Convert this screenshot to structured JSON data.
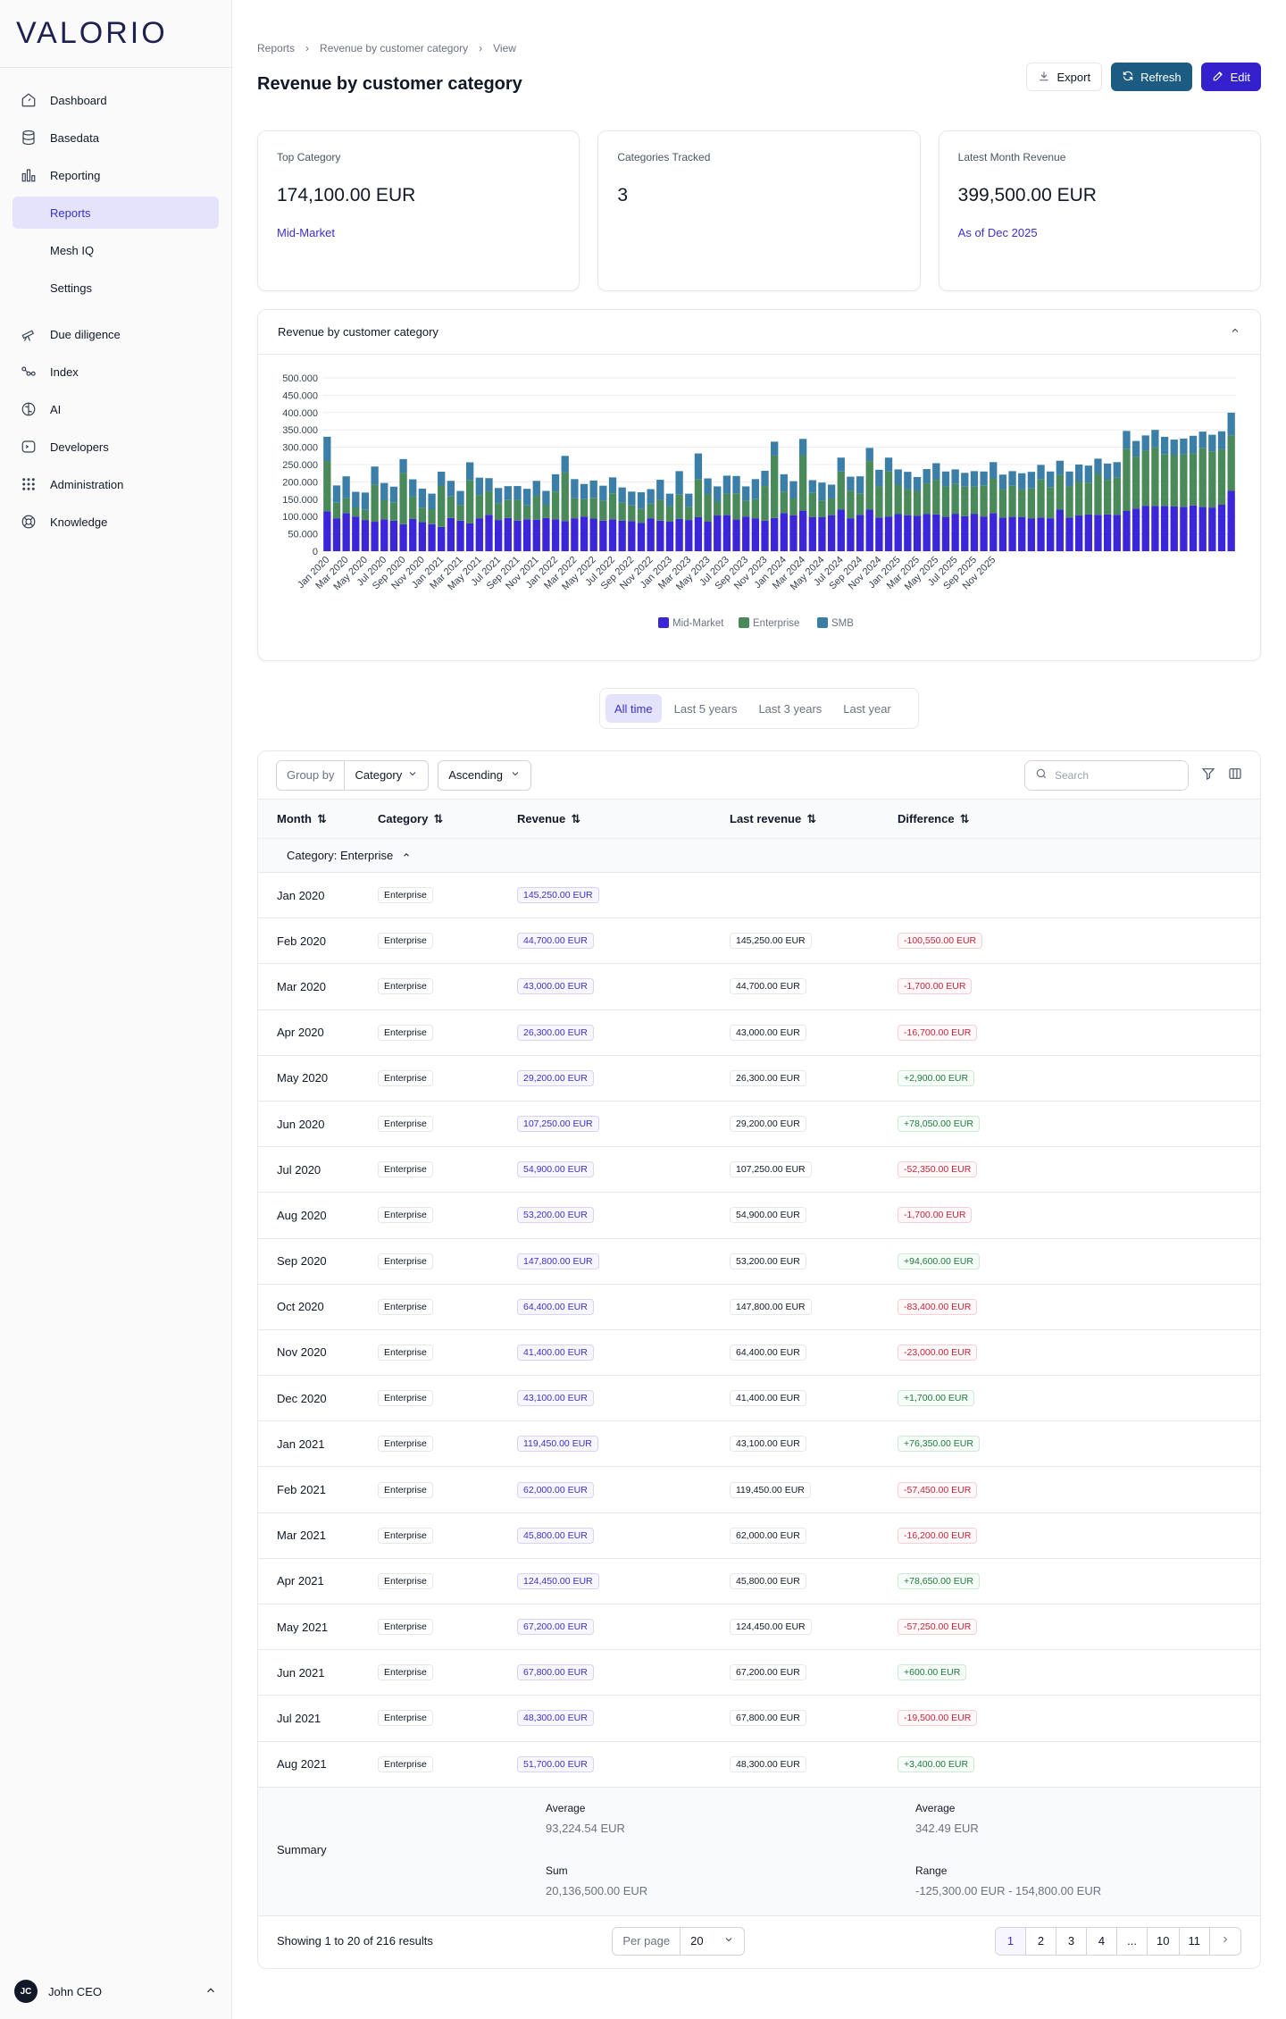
{
  "app": {
    "logo": "VALORIO"
  },
  "sidebar": {
    "items": [
      {
        "label": "Dashboard",
        "icon": "dashboard-icon"
      },
      {
        "label": "Basedata",
        "icon": "database-icon"
      },
      {
        "label": "Reporting",
        "icon": "bar-chart-icon"
      },
      {
        "label": "Reports",
        "sub": true,
        "active": true
      },
      {
        "label": "Mesh IQ",
        "sub": true
      },
      {
        "label": "Settings",
        "sub": true
      },
      {
        "label": "Due diligence",
        "icon": "telescope-icon"
      },
      {
        "label": "Index",
        "icon": "network-icon"
      },
      {
        "label": "AI",
        "icon": "brain-icon"
      },
      {
        "label": "Developers",
        "icon": "terminal-icon"
      },
      {
        "label": "Administration",
        "icon": "grid-icon"
      },
      {
        "label": "Knowledge",
        "icon": "lifebuoy-icon"
      }
    ],
    "user": {
      "initials": "JC",
      "name": "John CEO"
    }
  },
  "breadcrumb": [
    "Reports",
    "Revenue by customer category",
    "View"
  ],
  "page": {
    "title": "Revenue by customer category"
  },
  "actions": {
    "export": "Export",
    "refresh": "Refresh",
    "edit": "Edit"
  },
  "kpis": [
    {
      "label": "Top Category",
      "value": "174,100.00 EUR",
      "link": "Mid-Market"
    },
    {
      "label": "Categories Tracked",
      "value": "3",
      "link": ""
    },
    {
      "label": "Latest Month Revenue",
      "value": "399,500.00 EUR",
      "link": "As of Dec 2025"
    }
  ],
  "chart_card": {
    "title": "Revenue by customer category"
  },
  "chart_data": {
    "type": "bar",
    "stacked": true,
    "title": "",
    "ylim": [
      0,
      500000
    ],
    "yticks": [
      "500.000",
      "450.000",
      "400.000",
      "350.000",
      "300.000",
      "250.000",
      "200.000",
      "150.000",
      "100.000",
      "50.000",
      "0"
    ],
    "xlabels": [
      "Jan 2020",
      "Mar 2020",
      "May 2020",
      "Jul 2020",
      "Sep 2020",
      "Nov 2020",
      "Jan 2021",
      "Mar 2021",
      "May 2021",
      "Jul 2021",
      "Sep 2021",
      "Nov 2021",
      "Jan 2022",
      "Mar 2022",
      "May 2022",
      "Jul 2022",
      "Sep 2022",
      "Nov 2022",
      "Jan 2023",
      "Mar 2023",
      "May 2023",
      "Jul 2023",
      "Sep 2023",
      "Nov 2023",
      "Jan 2024",
      "Mar 2024",
      "May 2024",
      "Jul 2024",
      "Sep 2024",
      "Nov 2024",
      "Jan 2025",
      "Mar 2025",
      "May 2025",
      "Jul 2025",
      "Sep 2025",
      "Nov 2025"
    ],
    "colors": {
      "Mid-Market": "#3b27d9",
      "Enterprise": "#4a8a5a",
      "SMB": "#3b7fa8"
    },
    "series": [
      {
        "name": "Mid-Market",
        "values": [
          115000,
          95000,
          110000,
          100000,
          90000,
          85000,
          92000,
          88000,
          78000,
          93000,
          84000,
          78000,
          70000,
          96000,
          88000,
          80000,
          95000,
          105000,
          90000,
          96000,
          88000,
          92000,
          91000,
          96000,
          92000,
          87000,
          95000,
          100000,
          94000,
          88000,
          92000,
          88000,
          87000,
          82000,
          95000,
          88000,
          85000,
          93000,
          90000,
          98000,
          85000,
          103000,
          104000,
          92000,
          100000,
          95000,
          88000,
          96000,
          110000,
          104000,
          117000,
          98000,
          98000,
          104000,
          120000,
          95000,
          105000,
          120000,
          97000,
          100000,
          107000,
          104000,
          102000,
          107000,
          106000,
          99000,
          108000,
          101000,
          108000,
          100000,
          110000,
          97000,
          99000,
          98000,
          95000,
          97000,
          95000,
          120000,
          97000,
          103000,
          106000,
          105000,
          106000,
          105000,
          116000,
          123000,
          131000,
          130000,
          130000,
          129000,
          128000,
          132000,
          128000,
          126000,
          134000,
          174100
        ]
      },
      {
        "name": "Enterprise",
        "values": [
          145250,
          44700,
          43000,
          26300,
          29200,
          107250,
          54900,
          53200,
          147800,
          64400,
          41400,
          43100,
          119450,
          62000,
          45800,
          124450,
          67200,
          67800,
          48300,
          51700,
          60000,
          40000,
          70000,
          38000,
          80000,
          140000,
          58000,
          50000,
          60000,
          58000,
          75000,
          52000,
          45000,
          40000,
          42000,
          60000,
          45000,
          70000,
          38000,
          110000,
          80000,
          40000,
          62000,
          75000,
          45000,
          55000,
          100000,
          180000,
          62000,
          48000,
          160000,
          70000,
          48000,
          48000,
          110000,
          80000,
          62000,
          140000,
          90000,
          130000,
          85000,
          75000,
          72000,
          90000,
          100000,
          88000,
          86000,
          85000,
          78000,
          90000,
          100000,
          82000,
          90000,
          80000,
          86000,
          110000,
          90000,
          100000,
          90000,
          98000,
          92000,
          118000,
          100000,
          108000,
          180000,
          150000,
          160000,
          170000,
          150000,
          148000,
          152000,
          150000,
          170000,
          162000,
          160000,
          160000
        ]
      },
      {
        "name": "SMB",
        "values": [
          70000,
          50000,
          63000,
          45000,
          50000,
          52000,
          50000,
          45000,
          40000,
          50000,
          55000,
          45000,
          40000,
          45000,
          40000,
          52000,
          50000,
          38000,
          44000,
          40000,
          40000,
          48000,
          42000,
          40000,
          50000,
          48000,
          55000,
          44000,
          50000,
          43000,
          46000,
          44000,
          40000,
          48000,
          42000,
          58000,
          36000,
          68000,
          38000,
          74000,
          45000,
          44000,
          52000,
          50000,
          42000,
          58000,
          44000,
          40000,
          50000,
          50000,
          47000,
          37000,
          52000,
          40000,
          40000,
          40000,
          49000,
          38000,
          48000,
          40000,
          44000,
          50000,
          40000,
          40000,
          48000,
          43000,
          42000,
          40000,
          45000,
          40000,
          47000,
          42000,
          42000,
          47000,
          48000,
          42000,
          45000,
          41000,
          43000,
          49000,
          49000,
          44000,
          47000,
          44000,
          51000,
          45000,
          43000,
          50000,
          50000,
          45000,
          45000,
          51000,
          47000,
          48000,
          52000,
          65400
        ]
      }
    ],
    "legend": [
      "Mid-Market",
      "Enterprise",
      "SMB"
    ],
    "legend_position": "bottom",
    "grid": true
  },
  "range_tabs": [
    "All time",
    "Last 5 years",
    "Last 3 years",
    "Last year"
  ],
  "table": {
    "group_by_label": "Group by",
    "group_by_value": "Category",
    "sort_value": "Ascending",
    "search_placeholder": "Search",
    "headers": [
      "Month",
      "Category",
      "Revenue",
      "Last revenue",
      "Difference"
    ],
    "group_label": "Category: Enterprise",
    "rows": [
      {
        "month": "Jan 2020",
        "category": "Enterprise",
        "revenue": "145,250.00 EUR",
        "last": "",
        "diff": "",
        "sign": ""
      },
      {
        "month": "Feb 2020",
        "category": "Enterprise",
        "revenue": "44,700.00 EUR",
        "last": "145,250.00 EUR",
        "diff": "-100,550.00 EUR",
        "sign": "neg"
      },
      {
        "month": "Mar 2020",
        "category": "Enterprise",
        "revenue": "43,000.00 EUR",
        "last": "44,700.00 EUR",
        "diff": "-1,700.00 EUR",
        "sign": "neg"
      },
      {
        "month": "Apr 2020",
        "category": "Enterprise",
        "revenue": "26,300.00 EUR",
        "last": "43,000.00 EUR",
        "diff": "-16,700.00 EUR",
        "sign": "neg"
      },
      {
        "month": "May 2020",
        "category": "Enterprise",
        "revenue": "29,200.00 EUR",
        "last": "26,300.00 EUR",
        "diff": "+2,900.00 EUR",
        "sign": "pos"
      },
      {
        "month": "Jun 2020",
        "category": "Enterprise",
        "revenue": "107,250.00 EUR",
        "last": "29,200.00 EUR",
        "diff": "+78,050.00 EUR",
        "sign": "pos"
      },
      {
        "month": "Jul 2020",
        "category": "Enterprise",
        "revenue": "54,900.00 EUR",
        "last": "107,250.00 EUR",
        "diff": "-52,350.00 EUR",
        "sign": "neg"
      },
      {
        "month": "Aug 2020",
        "category": "Enterprise",
        "revenue": "53,200.00 EUR",
        "last": "54,900.00 EUR",
        "diff": "-1,700.00 EUR",
        "sign": "neg"
      },
      {
        "month": "Sep 2020",
        "category": "Enterprise",
        "revenue": "147,800.00 EUR",
        "last": "53,200.00 EUR",
        "diff": "+94,600.00 EUR",
        "sign": "pos"
      },
      {
        "month": "Oct 2020",
        "category": "Enterprise",
        "revenue": "64,400.00 EUR",
        "last": "147,800.00 EUR",
        "diff": "-83,400.00 EUR",
        "sign": "neg"
      },
      {
        "month": "Nov 2020",
        "category": "Enterprise",
        "revenue": "41,400.00 EUR",
        "last": "64,400.00 EUR",
        "diff": "-23,000.00 EUR",
        "sign": "neg"
      },
      {
        "month": "Dec 2020",
        "category": "Enterprise",
        "revenue": "43,100.00 EUR",
        "last": "41,400.00 EUR",
        "diff": "+1,700.00 EUR",
        "sign": "pos"
      },
      {
        "month": "Jan 2021",
        "category": "Enterprise",
        "revenue": "119,450.00 EUR",
        "last": "43,100.00 EUR",
        "diff": "+76,350.00 EUR",
        "sign": "pos"
      },
      {
        "month": "Feb 2021",
        "category": "Enterprise",
        "revenue": "62,000.00 EUR",
        "last": "119,450.00 EUR",
        "diff": "-57,450.00 EUR",
        "sign": "neg"
      },
      {
        "month": "Mar 2021",
        "category": "Enterprise",
        "revenue": "45,800.00 EUR",
        "last": "62,000.00 EUR",
        "diff": "-16,200.00 EUR",
        "sign": "neg"
      },
      {
        "month": "Apr 2021",
        "category": "Enterprise",
        "revenue": "124,450.00 EUR",
        "last": "45,800.00 EUR",
        "diff": "+78,650.00 EUR",
        "sign": "pos"
      },
      {
        "month": "May 2021",
        "category": "Enterprise",
        "revenue": "67,200.00 EUR",
        "last": "124,450.00 EUR",
        "diff": "-57,250.00 EUR",
        "sign": "neg"
      },
      {
        "month": "Jun 2021",
        "category": "Enterprise",
        "revenue": "67,800.00 EUR",
        "last": "67,200.00 EUR",
        "diff": "+600.00 EUR",
        "sign": "pos"
      },
      {
        "month": "Jul 2021",
        "category": "Enterprise",
        "revenue": "48,300.00 EUR",
        "last": "67,800.00 EUR",
        "diff": "-19,500.00 EUR",
        "sign": "neg"
      },
      {
        "month": "Aug 2021",
        "category": "Enterprise",
        "revenue": "51,700.00 EUR",
        "last": "48,300.00 EUR",
        "diff": "+3,400.00 EUR",
        "sign": "pos"
      }
    ],
    "summary": {
      "label": "Summary",
      "rev_avg_label": "Average",
      "rev_avg": "93,224.54 EUR",
      "rev_sum_label": "Sum",
      "rev_sum": "20,136,500.00 EUR",
      "diff_avg_label": "Average",
      "diff_avg": "342.49 EUR",
      "diff_range_label": "Range",
      "diff_range": "-125,300.00 EUR - 154,800.00 EUR"
    },
    "pager": {
      "showing": "Showing 1 to 20 of 216 results",
      "per_page_label": "Per page",
      "per_page_value": "20",
      "pages": [
        "1",
        "2",
        "3",
        "4",
        "...",
        "10",
        "11"
      ]
    }
  }
}
